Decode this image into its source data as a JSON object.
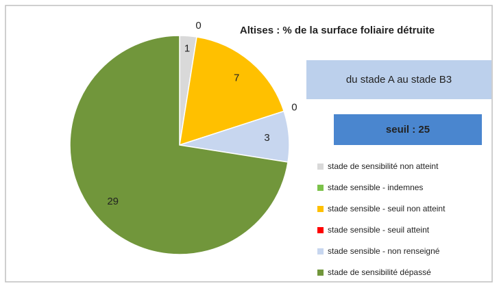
{
  "chart_data": {
    "type": "pie",
    "title": "Altises : % de la surface foliaire détruite",
    "annotations": [
      "du stade A au stade B3",
      "seuil : 25"
    ],
    "categories": [
      "stade de sensibilité non atteint",
      "stade sensible - indemnes",
      "stade sensible - seuil non atteint",
      "stade sensible - seuil atteint",
      "stade sensible - non renseigné",
      "stade de sensibilité dépassé"
    ],
    "values": [
      1,
      0,
      7,
      0,
      3,
      29
    ],
    "colors": [
      "#d9d9d9",
      "#7cc24a",
      "#ffc000",
      "#ff0000",
      "#c7d6ef",
      "#71963b"
    ],
    "legend": "right"
  }
}
